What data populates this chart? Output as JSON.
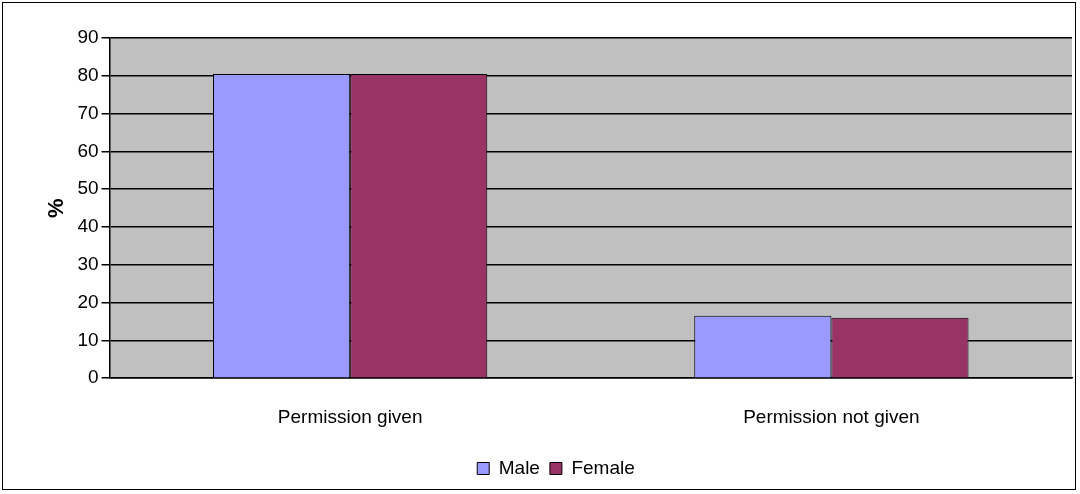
{
  "chart_data": {
    "type": "bar",
    "ylabel": "%",
    "categories": [
      "Permission given",
      "Permission not given"
    ],
    "series": [
      {
        "name": "Male",
        "color": "#9999ff",
        "values": [
          80.5,
          16.5
        ]
      },
      {
        "name": "Female",
        "color": "#993366",
        "values": [
          80.5,
          16
        ]
      }
    ],
    "ylim": [
      0,
      90
    ],
    "yticks": [
      0,
      10,
      20,
      30,
      40,
      50,
      60,
      70,
      80,
      90
    ],
    "grid": "y",
    "legend": "bottom"
  }
}
